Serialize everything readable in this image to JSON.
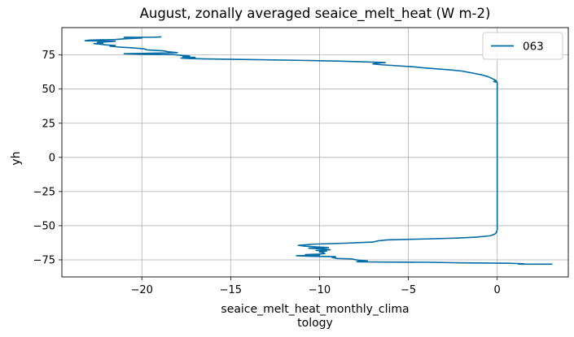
{
  "chart_data": {
    "type": "line",
    "title": "August, zonally averaged seaice_melt_heat (W m-2)",
    "xlabel": "seaice_melt_heat_monthly_clima\ntology",
    "ylabel": "yh",
    "xlim": [
      -24.5,
      4.0
    ],
    "ylim": [
      -87.5,
      95.0
    ],
    "xticks": [
      -20,
      -15,
      -10,
      -5,
      0
    ],
    "xtick_labels": [
      "−20",
      "−15",
      "−10",
      "−5",
      "0"
    ],
    "yticks": [
      -75,
      -50,
      -25,
      0,
      25,
      50,
      75
    ],
    "ytick_labels": [
      "−75",
      "−50",
      "−25",
      "0",
      "25",
      "50",
      "75"
    ],
    "grid": true,
    "legend_position": "top-right",
    "series": [
      {
        "name": "063",
        "color": "#006ba4",
        "points": [
          [
            3.1,
            -78.2
          ],
          [
            1.2,
            -78.2
          ],
          [
            1.5,
            -77.9
          ],
          [
            0.7,
            -77.5
          ],
          [
            -2.0,
            -77.2
          ],
          [
            -3.8,
            -76.8
          ],
          [
            -7.8,
            -76.5
          ],
          [
            -7.9,
            -76.3
          ],
          [
            -7.3,
            -75.8
          ],
          [
            -7.8,
            -75.3
          ],
          [
            -8.2,
            -74.3
          ],
          [
            -9.0,
            -74.0
          ],
          [
            -9.3,
            -73.2
          ],
          [
            -9.1,
            -72.7
          ],
          [
            -10.5,
            -72.4
          ],
          [
            -11.3,
            -72.0
          ],
          [
            -10.0,
            -71.6
          ],
          [
            -10.8,
            -71.2
          ],
          [
            -10.0,
            -70.8
          ],
          [
            -9.7,
            -70.4
          ],
          [
            -9.8,
            -69.8
          ],
          [
            -10.0,
            -69.2
          ],
          [
            -9.6,
            -68.6
          ],
          [
            -10.2,
            -68.1
          ],
          [
            -9.4,
            -67.6
          ],
          [
            -9.8,
            -67.0
          ],
          [
            -10.6,
            -66.5
          ],
          [
            -9.5,
            -66.0
          ],
          [
            -10.2,
            -65.5
          ],
          [
            -10.8,
            -65.0
          ],
          [
            -11.2,
            -64.4
          ],
          [
            -10.3,
            -63.5
          ],
          [
            -8.5,
            -62.8
          ],
          [
            -7.0,
            -62.0
          ],
          [
            -6.7,
            -61.1
          ],
          [
            -6.2,
            -60.4
          ],
          [
            -4.0,
            -59.7
          ],
          [
            -2.3,
            -59.1
          ],
          [
            -1.2,
            -58.4
          ],
          [
            -0.4,
            -57.4
          ],
          [
            -0.15,
            -56.3
          ],
          [
            -0.05,
            -55.0
          ],
          [
            0.0,
            -53.0
          ],
          [
            0.0,
            -40.0
          ],
          [
            0.0,
            -20.0
          ],
          [
            0.0,
            0.0
          ],
          [
            0.0,
            20.0
          ],
          [
            0.0,
            40.0
          ],
          [
            0.0,
            50.0
          ],
          [
            0.0,
            55.0
          ],
          [
            -0.2,
            55.5
          ],
          [
            -0.05,
            56.1
          ],
          [
            -0.15,
            56.8
          ],
          [
            -0.3,
            57.8
          ],
          [
            -0.5,
            59.0
          ],
          [
            -0.9,
            60.5
          ],
          [
            -1.5,
            62.0
          ],
          [
            -2.0,
            63.2
          ],
          [
            -2.7,
            64.1
          ],
          [
            -3.4,
            64.8
          ],
          [
            -4.2,
            65.6
          ],
          [
            -4.7,
            66.3
          ],
          [
            -5.8,
            67.2
          ],
          [
            -6.5,
            67.8
          ],
          [
            -7.0,
            68.4
          ],
          [
            -6.8,
            69.0
          ],
          [
            -6.3,
            69.4
          ],
          [
            -7.1,
            69.8
          ],
          [
            -9.0,
            70.5
          ],
          [
            -11.0,
            71.0
          ],
          [
            -14.0,
            71.6
          ],
          [
            -16.4,
            72.1
          ],
          [
            -17.3,
            72.4
          ],
          [
            -17.8,
            72.7
          ],
          [
            -17.0,
            73.2
          ],
          [
            -17.7,
            73.7
          ],
          [
            -17.3,
            74.2
          ],
          [
            -17.9,
            74.8
          ],
          [
            -18.2,
            75.2
          ],
          [
            -20.0,
            75.5
          ],
          [
            -21.0,
            75.9
          ],
          [
            -19.2,
            76.3
          ],
          [
            -18.0,
            76.7
          ],
          [
            -18.5,
            77.3
          ],
          [
            -18.8,
            78.0
          ],
          [
            -19.7,
            78.7
          ],
          [
            -19.9,
            79.5
          ],
          [
            -20.5,
            80.2
          ],
          [
            -21.3,
            80.8
          ],
          [
            -21.8,
            81.4
          ],
          [
            -21.5,
            81.9
          ],
          [
            -22.0,
            82.3
          ],
          [
            -22.3,
            82.8
          ],
          [
            -22.7,
            83.3
          ],
          [
            -22.2,
            83.6
          ],
          [
            -22.5,
            84.1
          ],
          [
            -22.1,
            84.5
          ],
          [
            -21.5,
            85.0
          ],
          [
            -23.2,
            85.4
          ],
          [
            -23.0,
            85.8
          ],
          [
            -21.5,
            86.3
          ],
          [
            -21.0,
            86.8
          ],
          [
            -20.0,
            87.4
          ],
          [
            -21.0,
            87.9
          ],
          [
            -19.3,
            88.0
          ],
          [
            -18.9,
            88.2
          ]
        ]
      }
    ]
  }
}
